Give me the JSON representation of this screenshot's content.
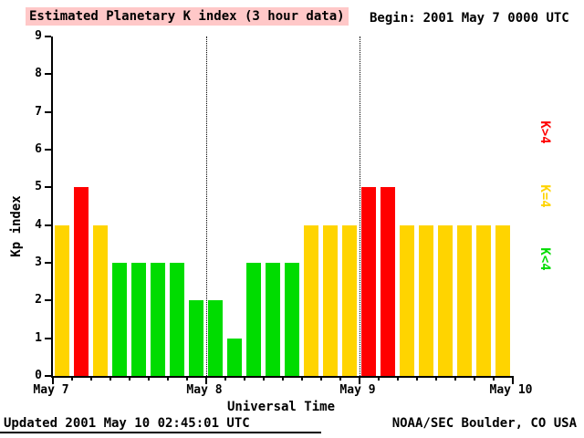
{
  "header": {
    "title": "Estimated Planetary K index (3 hour data)",
    "begin_label": "Begin:",
    "begin_value": "2001 May 7 0000 UTC"
  },
  "legend": [
    {
      "label": "K>4",
      "color": "#ff0000"
    },
    {
      "label": "K=4",
      "color": "#ffd400"
    },
    {
      "label": "K<4",
      "color": "#00dc00"
    }
  ],
  "footer": {
    "updated": "Updated 2001 May 10 02:45:01 UTC",
    "source": "NOAA/SEC Boulder, CO USA"
  },
  "chart_data": {
    "type": "bar",
    "title": "Estimated Planetary K index (3 hour data)",
    "xlabel": "Universal Time",
    "ylabel": "Kp index",
    "ylim": [
      0,
      9
    ],
    "y_ticks": [
      0,
      1,
      2,
      3,
      4,
      5,
      6,
      7,
      8,
      9
    ],
    "x_tick_labels": [
      "May 7",
      "May 8",
      "May 9",
      "May 10"
    ],
    "bars_per_day": 8,
    "hours_per_bar": 3,
    "series": [
      {
        "name": "Kp",
        "values": [
          4,
          5,
          4,
          3,
          3,
          3,
          3,
          2,
          2,
          1,
          3,
          3,
          3,
          4,
          4,
          4,
          5,
          5,
          4,
          4,
          4,
          4,
          4,
          4
        ]
      }
    ],
    "color_rule": {
      "less_than_4": "#00dc00",
      "equal_4": "#ffd400",
      "greater_than_4": "#ff0000"
    },
    "grid": "dotted vertical lines at day boundaries",
    "legend_position": "right"
  }
}
